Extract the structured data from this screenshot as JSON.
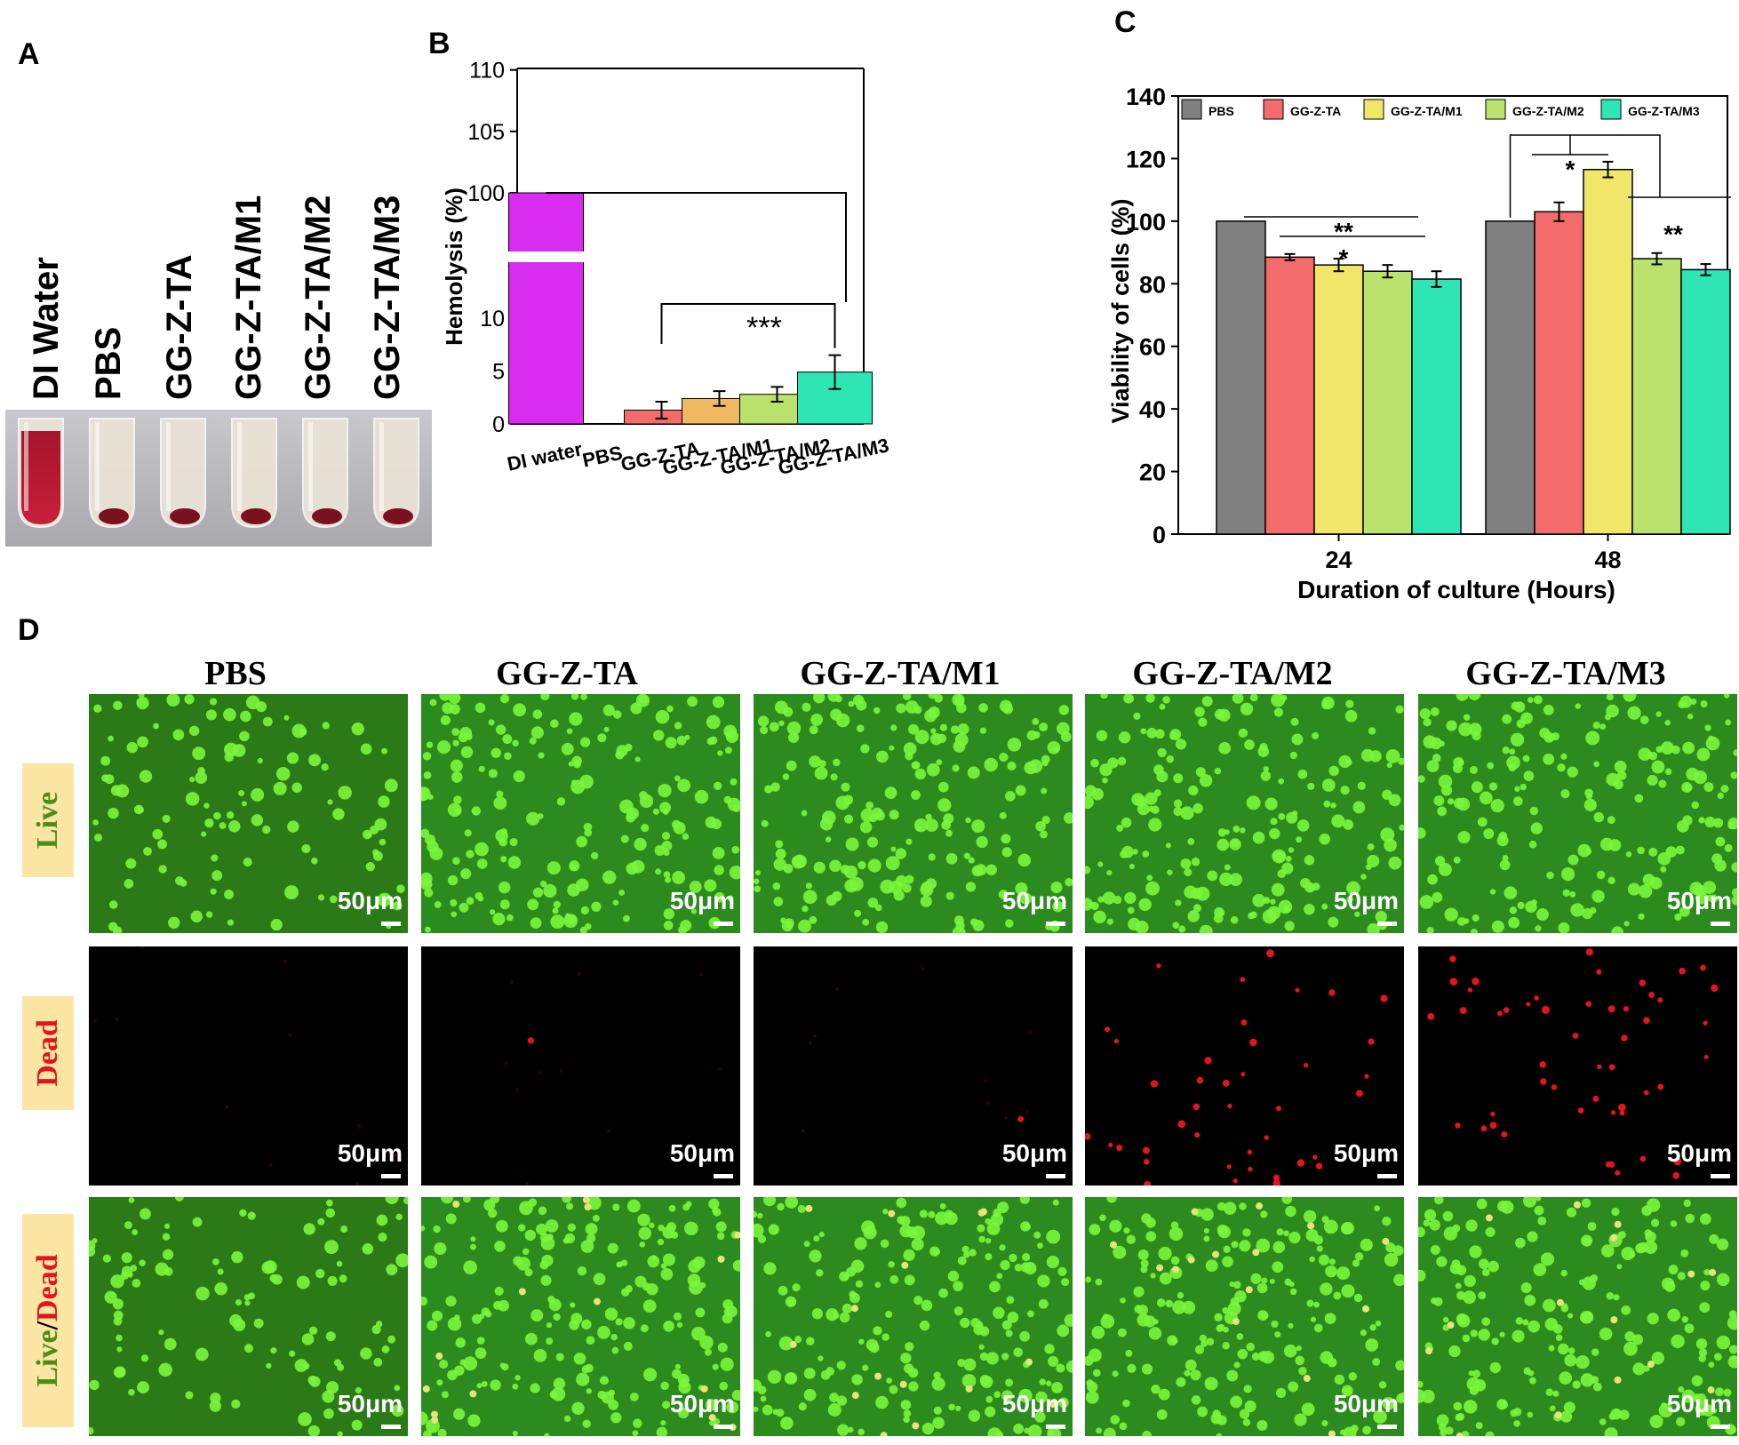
{
  "panel_labels": {
    "a": "A",
    "b": "B",
    "c": "C",
    "d": "D"
  },
  "panelA": {
    "tubes": [
      {
        "label": "DI Water",
        "blood": "lysed"
      },
      {
        "label": "PBS",
        "blood": "pellet"
      },
      {
        "label": "GG-Z-TA",
        "blood": "pellet"
      },
      {
        "label": "GG-Z-TA/M1",
        "blood": "pellet"
      },
      {
        "label": "GG-Z-TA/M2",
        "blood": "pellet"
      },
      {
        "label": "GG-Z-TA/M3",
        "blood": "pellet"
      }
    ]
  },
  "chart_data": [
    {
      "panel": "B",
      "type": "bar",
      "title": "",
      "xlabel": "",
      "ylabel": "Hemolysis (%)",
      "categories": [
        "DI water",
        "PBS",
        "GG-Z-TA",
        "GG-Z-TA/M1",
        "GG-Z-TA/M2",
        "GG-Z-TA/M3"
      ],
      "values": [
        100,
        0,
        1.3,
        2.4,
        2.8,
        4.9
      ],
      "errors": [
        0,
        0,
        0.8,
        0.7,
        0.7,
        1.6
      ],
      "colors": [
        "#d82cf0",
        "#ffffff",
        "#f46b6b",
        "#f0b860",
        "#b9e36d",
        "#2ee6b4"
      ],
      "axis_break": true,
      "ylim_lower": [
        0,
        15
      ],
      "ylim_upper": [
        95,
        110
      ],
      "yticks": [
        "0",
        "5",
        "10",
        "100",
        "105",
        "110"
      ],
      "annotation": "***"
    },
    {
      "panel": "C",
      "type": "bar",
      "title": "",
      "xlabel": "Duration of culture (Hours)",
      "ylabel": "Viability of cells (%)",
      "categories": [
        "24",
        "48"
      ],
      "series": [
        {
          "name": "PBS",
          "color": "#808080",
          "values": [
            100,
            100
          ],
          "errors": [
            0,
            0
          ]
        },
        {
          "name": "GG-Z-TA",
          "color": "#f46b6b",
          "values": [
            88.5,
            103
          ],
          "errors": [
            1,
            3
          ]
        },
        {
          "name": "GG-Z-TA/M1",
          "color": "#f0e66a",
          "values": [
            86,
            116.5
          ],
          "errors": [
            2,
            2.5
          ]
        },
        {
          "name": "GG-Z-TA/M2",
          "color": "#b9e36d",
          "values": [
            84,
            88
          ],
          "errors": [
            2,
            1.8
          ]
        },
        {
          "name": "GG-Z-TA/M3",
          "color": "#2ee6b4",
          "values": [
            81.5,
            84.5
          ],
          "errors": [
            2.5,
            1.8
          ]
        }
      ],
      "ylim": [
        0,
        140
      ],
      "yticks": [
        "0",
        "20",
        "40",
        "60",
        "80",
        "100",
        "120",
        "140"
      ],
      "legend": "top",
      "annotations": [
        "**",
        "*",
        "*",
        "**"
      ]
    }
  ],
  "panelD": {
    "columns": [
      "PBS",
      "GG-Z-TA",
      "GG-Z-TA/M1",
      "GG-Z-TA/M2",
      "GG-Z-TA/M3"
    ],
    "rows": [
      {
        "label_live": "Live"
      },
      {
        "label_dead": "Dead"
      },
      {
        "label_live": "Live",
        "separator": "/",
        "label_dead": "Dead"
      }
    ],
    "scale_bar": "50μm"
  }
}
